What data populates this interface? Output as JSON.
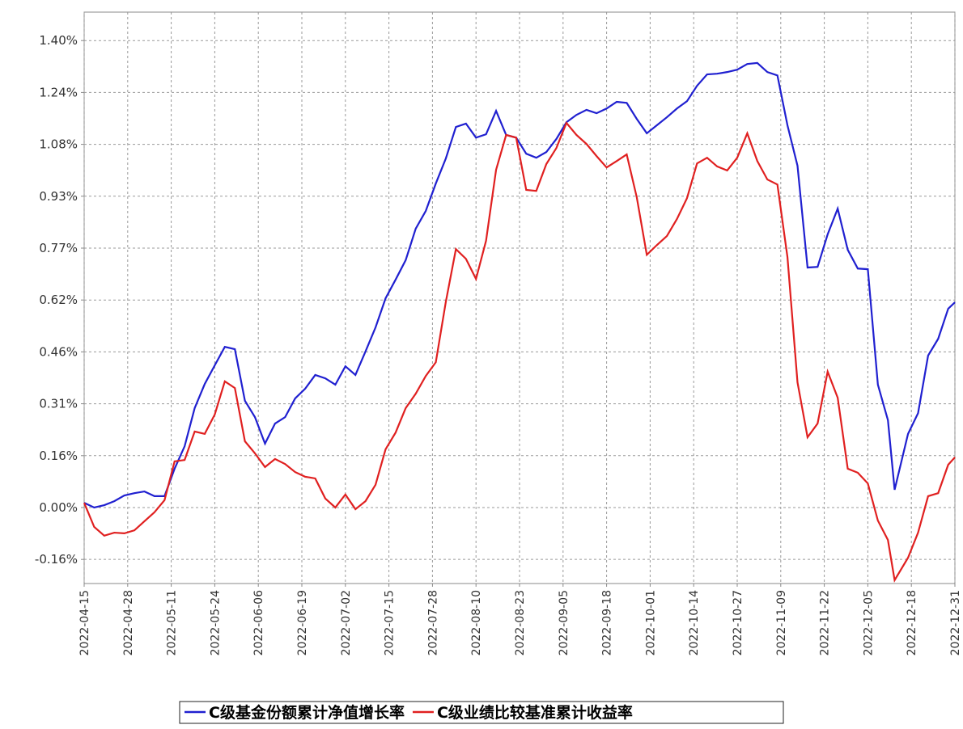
{
  "chart_data": {
    "type": "line",
    "x": [
      "2022-04-15",
      "2022-04-18",
      "2022-04-21",
      "2022-04-24",
      "2022-04-27",
      "2022-04-30",
      "2022-05-03",
      "2022-05-06",
      "2022-05-09",
      "2022-05-12",
      "2022-05-15",
      "2022-05-18",
      "2022-05-21",
      "2022-05-24",
      "2022-05-27",
      "2022-05-30",
      "2022-06-02",
      "2022-06-05",
      "2022-06-08",
      "2022-06-11",
      "2022-06-14",
      "2022-06-17",
      "2022-06-20",
      "2022-06-23",
      "2022-06-26",
      "2022-06-29",
      "2022-07-02",
      "2022-07-05",
      "2022-07-08",
      "2022-07-11",
      "2022-07-14",
      "2022-07-17",
      "2022-07-20",
      "2022-07-23",
      "2022-07-26",
      "2022-07-29",
      "2022-08-01",
      "2022-08-04",
      "2022-08-07",
      "2022-08-10",
      "2022-08-13",
      "2022-08-16",
      "2022-08-19",
      "2022-08-22",
      "2022-08-25",
      "2022-08-28",
      "2022-08-31",
      "2022-09-03",
      "2022-09-06",
      "2022-09-09",
      "2022-09-12",
      "2022-09-15",
      "2022-09-18",
      "2022-09-21",
      "2022-09-24",
      "2022-09-27",
      "2022-09-30",
      "2022-10-03",
      "2022-10-06",
      "2022-10-09",
      "2022-10-12",
      "2022-10-15",
      "2022-10-18",
      "2022-10-21",
      "2022-10-24",
      "2022-10-27",
      "2022-10-30",
      "2022-11-02",
      "2022-11-05",
      "2022-11-08",
      "2022-11-11",
      "2022-11-14",
      "2022-11-17",
      "2022-11-20",
      "2022-11-23",
      "2022-11-26",
      "2022-11-29",
      "2022-12-02",
      "2022-12-05",
      "2022-12-08",
      "2022-12-11",
      "2022-12-13",
      "2022-12-17",
      "2022-12-20",
      "2022-12-23",
      "2022-12-26",
      "2022-12-29",
      "2022-12-31"
    ],
    "series": [
      {
        "name": "C级基金份额累计净值增长率",
        "color": "#2020d0",
        "values": [
          0.014,
          0,
          0.007,
          0.019,
          0.036,
          0.043,
          0.048,
          0.034,
          0.034,
          0.116,
          0.183,
          0.297,
          0.369,
          0.425,
          0.48,
          0.473,
          0.319,
          0.27,
          0.191,
          0.251,
          0.27,
          0.326,
          0.355,
          0.396,
          0.386,
          0.367,
          0.422,
          0.396,
          0.466,
          0.538,
          0.625,
          0.681,
          0.739,
          0.833,
          0.886,
          0.968,
          1.043,
          1.137,
          1.147,
          1.105,
          1.115,
          1.185,
          1.113,
          1.105,
          1.057,
          1.045,
          1.062,
          1.101,
          1.151,
          1.173,
          1.188,
          1.178,
          1.192,
          1.212,
          1.209,
          1.161,
          1.118,
          1.142,
          1.166,
          1.192,
          1.214,
          1.26,
          1.294,
          1.296,
          1.301,
          1.308,
          1.325,
          1.328,
          1.301,
          1.291,
          1.142,
          1.021,
          0.717,
          0.719,
          0.816,
          0.893,
          0.77,
          0.714,
          0.712,
          0.367,
          0.261,
          0.053,
          0.22,
          0.282,
          0.454,
          0.504,
          0.594,
          0.613
        ]
      },
      {
        "name": "C级业绩比较基准累计收益率",
        "color": "#e02020",
        "values": [
          0.014,
          -0.058,
          -0.084,
          -0.075,
          -0.077,
          -0.068,
          -0.041,
          -0.014,
          0.022,
          0.138,
          0.142,
          0.227,
          0.22,
          0.278,
          0.377,
          0.357,
          0.198,
          0.162,
          0.121,
          0.145,
          0.13,
          0.106,
          0.092,
          0.087,
          0.027,
          0,
          0.039,
          -0.005,
          0.019,
          0.068,
          0.174,
          0.224,
          0.297,
          0.34,
          0.393,
          0.434,
          0.615,
          0.772,
          0.743,
          0.683,
          0.797,
          1.009,
          1.113,
          1.105,
          0.949,
          0.946,
          1.026,
          1.074,
          1.149,
          1.113,
          1.086,
          1.05,
          1.016,
          1.035,
          1.055,
          0.927,
          0.755,
          0.784,
          0.811,
          0.862,
          0.924,
          1.028,
          1.045,
          1.019,
          1.007,
          1.045,
          1.118,
          1.035,
          0.98,
          0.965,
          0.748,
          0.374,
          0.21,
          0.251,
          0.406,
          0.328,
          0.116,
          0.104,
          0.072,
          -0.039,
          -0.097,
          -0.217,
          -0.15,
          -0.075,
          0.034,
          0.043,
          0.128,
          0.15
        ]
      }
    ],
    "xlim": [
      "2022-04-15",
      "2022-12-31"
    ],
    "xticks": [
      "2022-04-15",
      "2022-04-28",
      "2022-05-11",
      "2022-05-24",
      "2022-06-06",
      "2022-06-19",
      "2022-07-02",
      "2022-07-15",
      "2022-07-28",
      "2022-08-10",
      "2022-08-23",
      "2022-09-05",
      "2022-09-18",
      "2022-10-01",
      "2022-10-14",
      "2022-10-27",
      "2022-11-09",
      "2022-11-22",
      "2022-12-05",
      "2022-12-18",
      "2022-12-31"
    ],
    "ylim": [
      -0.227,
      1.48
    ],
    "yticks": [
      {
        "value": -0.155,
        "label": "-0.16%"
      },
      {
        "value": 0,
        "label": "0.00%"
      },
      {
        "value": 0.155,
        "label": "0.16%"
      },
      {
        "value": 0.31,
        "label": "0.31%"
      },
      {
        "value": 0.465,
        "label": "0.46%"
      },
      {
        "value": 0.62,
        "label": "0.62%"
      },
      {
        "value": 0.775,
        "label": "0.77%"
      },
      {
        "value": 0.93,
        "label": "0.93%"
      },
      {
        "value": 1.085,
        "label": "1.08%"
      },
      {
        "value": 1.24,
        "label": "1.24%"
      },
      {
        "value": 1.395,
        "label": "1.40%"
      }
    ],
    "grid": true
  }
}
